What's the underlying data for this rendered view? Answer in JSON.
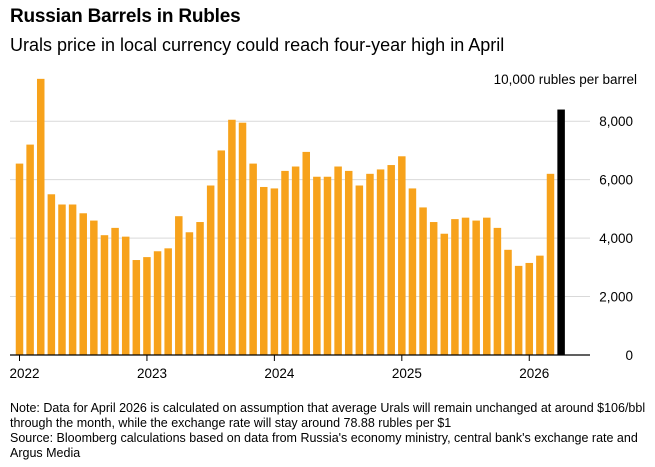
{
  "header": {
    "title": "Russian Barrels in Rubles",
    "subtitle": "Urals price in local currency could reach four-year high in April",
    "unit_label": "10,000 rubles per barrel"
  },
  "notes": {
    "note": "Note: Data for April 2026 is calculated on assumption that average Urals will remain unchanged at around $106/bbl through the month, while the exchange rate will stay around 78.88 rubles per $1",
    "source": "Source: Bloomberg calculations based on data from Russia's economy ministry, central bank's exchange rate and Argus Media"
  },
  "colors": {
    "bar": "#f7a21b",
    "highlight": "#000000",
    "grid": "#d9d9d9",
    "axis": "#000000"
  },
  "chart_data": {
    "type": "bar",
    "ylabel": "10,000 rubles per barrel",
    "ylim": [
      0,
      9000
    ],
    "y_ticks": [
      0,
      2000,
      4000,
      6000,
      8000
    ],
    "y_tick_labels": [
      "0",
      "2,000",
      "4,000",
      "6,000",
      "8,000"
    ],
    "x_tick_labels": [
      "2022",
      "2023",
      "2024",
      "2025",
      "2026"
    ],
    "x_tick_index": [
      0,
      12,
      24,
      36,
      48
    ],
    "grid": true,
    "categories": [
      "2022-01",
      "2022-02",
      "2022-03",
      "2022-04",
      "2022-05",
      "2022-06",
      "2022-07",
      "2022-08",
      "2022-09",
      "2022-10",
      "2022-11",
      "2022-12",
      "2023-01",
      "2023-02",
      "2023-03",
      "2023-04",
      "2023-05",
      "2023-06",
      "2023-07",
      "2023-08",
      "2023-09",
      "2023-10",
      "2023-11",
      "2023-12",
      "2024-01",
      "2024-02",
      "2024-03",
      "2024-04",
      "2024-05",
      "2024-06",
      "2024-07",
      "2024-08",
      "2024-09",
      "2024-10",
      "2024-11",
      "2024-12",
      "2025-01",
      "2025-02",
      "2025-03",
      "2025-04",
      "2025-05",
      "2025-06",
      "2025-07",
      "2025-08",
      "2025-09",
      "2025-10",
      "2025-11",
      "2025-12",
      "2026-01",
      "2026-02",
      "2026-03",
      "2026-04"
    ],
    "values": [
      6550,
      7200,
      9450,
      5500,
      5150,
      5150,
      4850,
      4600,
      4100,
      4350,
      4050,
      3250,
      3350,
      3550,
      3650,
      4750,
      4200,
      4550,
      5800,
      7000,
      8050,
      7950,
      6550,
      5750,
      5700,
      6300,
      6450,
      6950,
      6100,
      6100,
      6450,
      6300,
      5800,
      6200,
      6350,
      6500,
      6800,
      5700,
      5050,
      4550,
      4150,
      4650,
      4700,
      4600,
      4700,
      4350,
      3600,
      3050,
      3150,
      3400,
      6200,
      8400
    ],
    "highlight_index": 51
  }
}
